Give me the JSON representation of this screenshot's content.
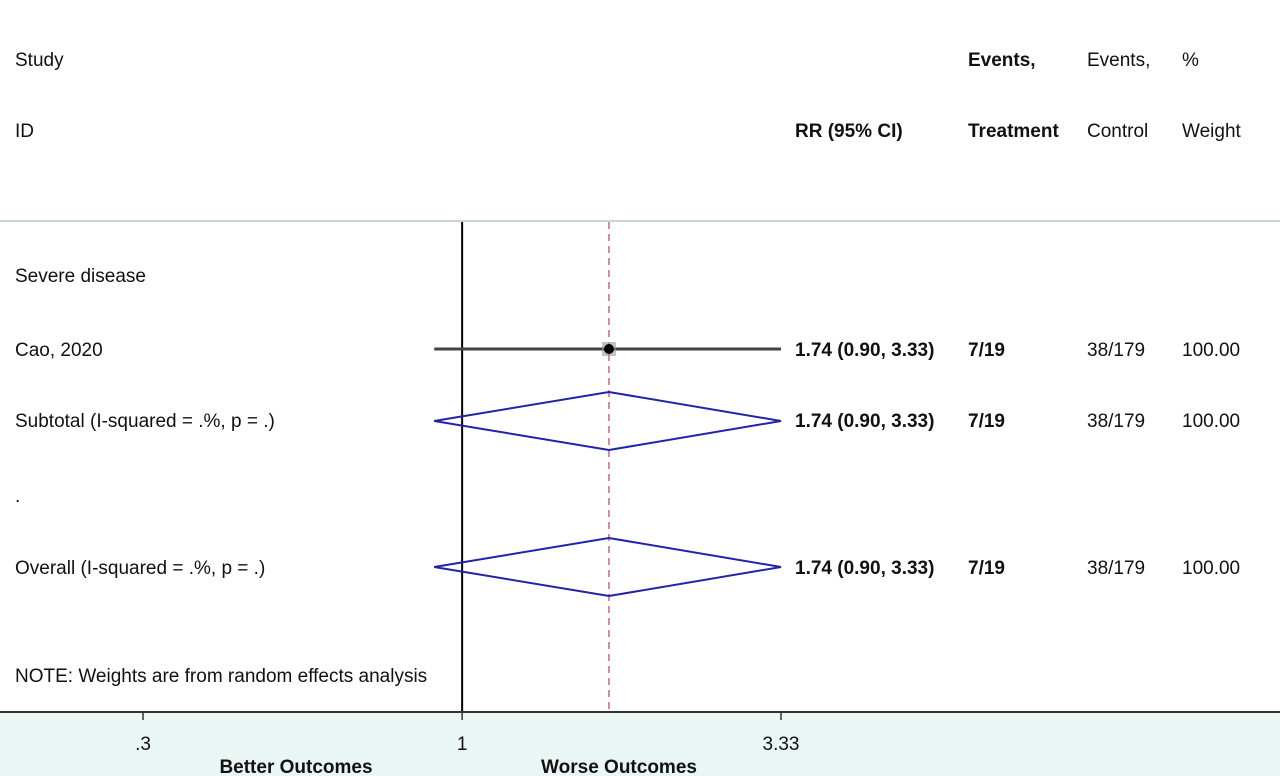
{
  "header": {
    "study_line1": "Study",
    "study_line2": "ID",
    "rr_label": "RR (95% CI)",
    "events_treatment_line1": "Events,",
    "events_treatment_line2": "Treatment",
    "events_control_line1": "Events,",
    "events_control_line2": "Control",
    "weight_line1": "%",
    "weight_line2": "Weight"
  },
  "rows": [
    {
      "label": "Severe disease",
      "type": "group"
    },
    {
      "label": "Cao, 2020",
      "type": "study",
      "rr_text": "1.74 (0.90, 3.33)",
      "events_treatment": "7/19",
      "events_control": "38/179",
      "weight": "100.00"
    },
    {
      "label": "Subtotal  (I-squared = .%, p = .)",
      "type": "subtotal",
      "rr_text": "1.74 (0.90, 3.33)",
      "events_treatment": "7/19",
      "events_control": "38/179",
      "weight": "100.00"
    },
    {
      "label": ".",
      "type": "spacer"
    },
    {
      "label": "Overall  (I-squared = .%, p = .)",
      "type": "overall",
      "rr_text": "1.74 (0.90, 3.33)",
      "events_treatment": "7/19",
      "events_control": "38/179",
      "weight": "100.00"
    }
  ],
  "note": "NOTE: Weights are from random effects analysis",
  "axis": {
    "ticks": [
      {
        "value": 0.3,
        "label": ".3"
      },
      {
        "value": 1,
        "label": "1"
      },
      {
        "value": 3.33,
        "label": "3.33"
      }
    ],
    "left_label": "Better Outcomes",
    "right_label": "Worse Outcomes"
  },
  "colors": {
    "diamond": "#2222aa",
    "ci_line": "#444444",
    "reference_line": "#d08aa6",
    "axis_band": "#eaf6f3",
    "separator": "#b8c8c8"
  },
  "chart_data": {
    "type": "forest",
    "scale": "log",
    "xlim": [
      0.3,
      3.33
    ],
    "null_line": 1,
    "pooled_estimate": 1.74,
    "estimates": [
      {
        "label": "Cao, 2020",
        "kind": "study",
        "rr": 1.74,
        "ci_low": 0.9,
        "ci_high": 3.33,
        "weight": 100.0
      },
      {
        "label": "Subtotal  (I-squared = .%, p = .)",
        "kind": "subtotal",
        "rr": 1.74,
        "ci_low": 0.9,
        "ci_high": 3.33
      },
      {
        "label": "Overall  (I-squared = .%, p = .)",
        "kind": "overall",
        "rr": 1.74,
        "ci_low": 0.9,
        "ci_high": 3.33
      }
    ]
  }
}
